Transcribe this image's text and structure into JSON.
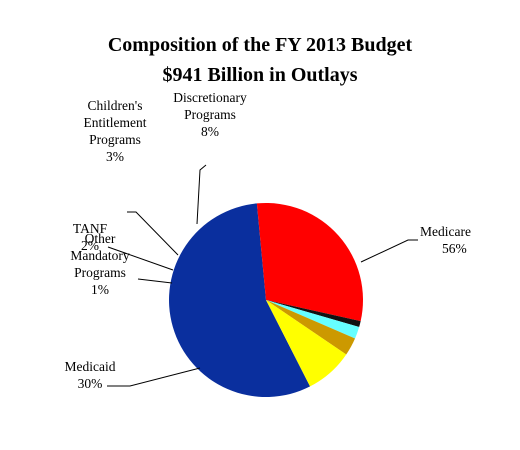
{
  "chart_data": {
    "type": "pie",
    "title": "Composition of the FY 2013 Budget",
    "subtitle": "$941 Billion in Outlays",
    "categories": [
      "Medicare",
      "Medicaid",
      "Other Mandatory Programs",
      "TANF",
      "Children's Entitlement Programs",
      "Discretionary Programs"
    ],
    "values": [
      56,
      30,
      1,
      2,
      3,
      8
    ],
    "unit": "%",
    "colors": [
      "#0a2f9e",
      "#ff0000",
      "#111111",
      "#66ffff",
      "#cc9900",
      "#ffff00"
    ],
    "labels": [
      {
        "lines": [
          "Medicare"
        ],
        "value_text": "56%"
      },
      {
        "lines": [
          "Medicaid"
        ],
        "value_text": "30%"
      },
      {
        "lines": [
          "Other",
          "Mandatory",
          "Programs"
        ],
        "value_text": "1%"
      },
      {
        "lines": [
          "TANF"
        ],
        "value_text": "2%"
      },
      {
        "lines": [
          "Children's",
          "Entitlement",
          "Programs"
        ],
        "value_text": "3%"
      },
      {
        "lines": [
          "Discretionary",
          "Programs"
        ],
        "value_text": "8%"
      }
    ],
    "legend": "none"
  }
}
